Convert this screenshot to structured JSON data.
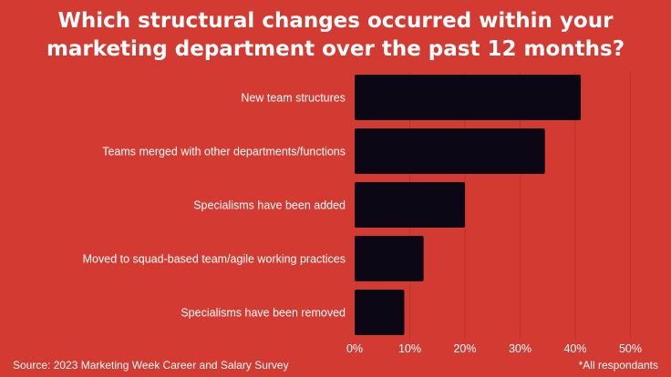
{
  "header": {
    "title_line1": "Which structural changes occurred within your",
    "title_line2": "marketing department over the past 12 months?"
  },
  "footer": {
    "source": "Source: 2023 Marketing Week Career and Salary Survey",
    "note": "*All respondants"
  },
  "colors": {
    "background": "#d23a32",
    "bar": "#0c0714",
    "text": "#ffffff",
    "grid": "#c0302a"
  },
  "chart_data": {
    "type": "bar",
    "orientation": "horizontal",
    "title": "Which structural changes occurred within your marketing department over the past 12 months?",
    "categories": [
      "New team structures",
      "Teams merged with other departments/functions",
      "Specialisms have been added",
      "Moved to squad-based team/agile working practices",
      "Specialisms have been removed"
    ],
    "values": [
      41,
      34.5,
      20,
      12.5,
      9
    ],
    "xlim": [
      0,
      50
    ],
    "xticks": [
      0,
      10,
      20,
      30,
      40,
      50
    ],
    "tick_labels": [
      "0%",
      "10%",
      "20%",
      "30%",
      "40%",
      "50%"
    ],
    "unit": "%",
    "grid": true
  }
}
